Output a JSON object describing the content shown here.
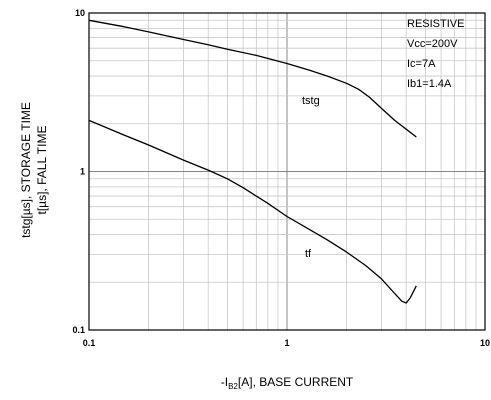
{
  "chart_data": {
    "type": "line",
    "x_scale": "log",
    "y_scale": "log",
    "xlim": [
      0.1,
      10
    ],
    "ylim": [
      0.1,
      10
    ],
    "grid": true,
    "x_ticks": [
      "0.1",
      "1",
      "10"
    ],
    "y_ticks": [
      "0.1",
      "1",
      "10"
    ],
    "xlabel_pre": "-I",
    "xlabel_sub": "B2",
    "xlabel_post": "[A], BASE CURRENT",
    "ylabel_line1": "tstg[µs], STORAGE TIME",
    "ylabel_line2": "t[µs], FALL TIME",
    "conditions": [
      "RESISTIVE",
      "Vcc=200V",
      "Ic=7A",
      "Ib1=1.4A"
    ],
    "series": [
      {
        "name": "tstg",
        "x": [
          0.1,
          0.15,
          0.2,
          0.3,
          0.4,
          0.5,
          0.7,
          1.0,
          1.3,
          1.6,
          2.0,
          2.3,
          2.6,
          3.0,
          3.5,
          4.0,
          4.5
        ],
        "y": [
          9.0,
          8.2,
          7.6,
          6.8,
          6.3,
          5.9,
          5.4,
          4.8,
          4.35,
          4.0,
          3.6,
          3.3,
          2.95,
          2.5,
          2.1,
          1.85,
          1.65
        ]
      },
      {
        "name": "tf",
        "x": [
          0.1,
          0.15,
          0.2,
          0.3,
          0.4,
          0.5,
          0.6,
          0.8,
          1.0,
          1.3,
          1.6,
          2.0,
          2.5,
          3.0,
          3.5,
          3.8,
          4.0,
          4.2,
          4.5
        ],
        "y": [
          2.1,
          1.7,
          1.47,
          1.18,
          1.02,
          0.9,
          0.79,
          0.63,
          0.52,
          0.43,
          0.37,
          0.31,
          0.255,
          0.21,
          0.17,
          0.152,
          0.148,
          0.16,
          0.19
        ]
      }
    ]
  }
}
